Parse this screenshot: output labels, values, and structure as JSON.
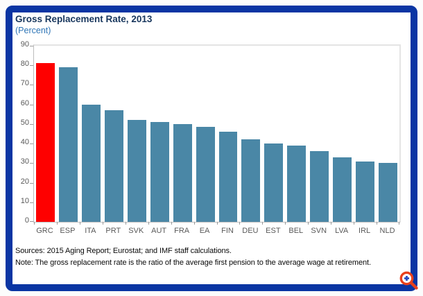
{
  "frame": {
    "border_color": "#0a35a3"
  },
  "chart_data": {
    "type": "bar",
    "title": "Gross Replacement Rate, 2013",
    "subtitle": "(Percent)",
    "categories": [
      "GRC",
      "ESP",
      "ITA",
      "PRT",
      "SVK",
      "AUT",
      "FRA",
      "EA",
      "FIN",
      "DEU",
      "EST",
      "BEL",
      "SVN",
      "LVA",
      "IRL",
      "NLD"
    ],
    "values": [
      81,
      79,
      60,
      57,
      52,
      51,
      50,
      48.5,
      46,
      42,
      40,
      39,
      36,
      33,
      31,
      30
    ],
    "highlight_category": "GRC",
    "highlight_color": "#fe0000",
    "bar_color": "#4a87a6",
    "xlabel": "",
    "ylabel": "",
    "ylim": [
      0,
      90
    ],
    "y_ticks": [
      90,
      80,
      70,
      60,
      50,
      40,
      30,
      20,
      10,
      0
    ],
    "grid": false,
    "legend": "none",
    "title_color": "#17365d",
    "subtitle_color": "#2e75b6",
    "axis_label_color": "#595959"
  },
  "footer": {
    "sources": "Sources: 2015 Aging Report; Eurostat; and IMF staff calculations.",
    "note": "Note: The gross replacement rate is the ratio of the average first pension to the average wage at retirement."
  },
  "icons": {
    "zoom_icon": "magnifier-plus",
    "zoom_icon_ring_color": "#e8401c",
    "zoom_icon_plus_color": "#2a4fc0"
  }
}
